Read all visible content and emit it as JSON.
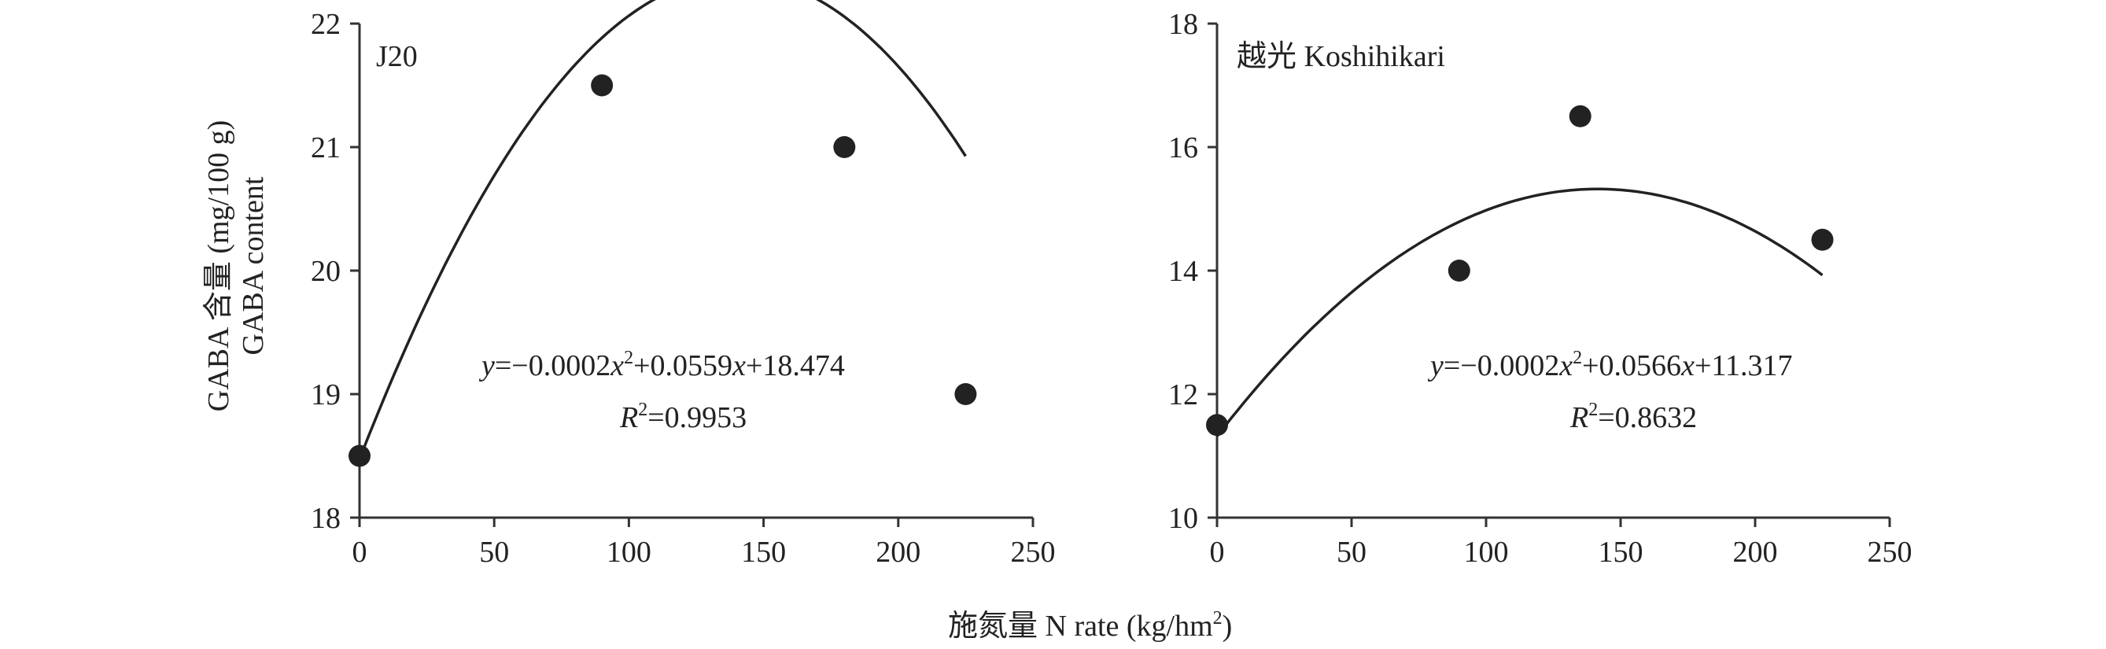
{
  "y_axis_label": {
    "line1": "GABA 含量 (mg/100 g)",
    "line2": "GABA content"
  },
  "x_axis_label": {
    "text": "施氮量 N rate (kg/hm",
    "sup": "2",
    "suffix": ")"
  },
  "chart_data": [
    {
      "type": "scatter",
      "panel_label": "J20",
      "x": [
        0,
        90,
        180,
        225
      ],
      "y": [
        18.5,
        21.5,
        21.0,
        19.0
      ],
      "fit": {
        "a": -0.0002,
        "b": 0.0559,
        "c": 18.474
      },
      "equation": {
        "y": "y",
        "eq1": "=−0.0002",
        "x1": "x",
        "sup": "2",
        "eq2": "+0.0559",
        "x2": "x",
        "eq3": "+18.474",
        "r": "R",
        "rsup": "2",
        "rval": "=0.9953"
      },
      "xlim": [
        0,
        250
      ],
      "ylim": [
        18,
        22
      ],
      "xticks": [
        "0",
        "50",
        "100",
        "150",
        "200",
        "250"
      ],
      "yticks": [
        "18",
        "19",
        "20",
        "21",
        "22"
      ],
      "grid": false,
      "colors": {
        "marker": "#222222",
        "line": "#222222",
        "axis": "#333333"
      }
    },
    {
      "type": "scatter",
      "panel_label": "越光 Koshihikari",
      "x": [
        0,
        90,
        135,
        225
      ],
      "y": [
        11.5,
        14.0,
        16.5,
        14.5
      ],
      "fit": {
        "a": -0.0002,
        "b": 0.0566,
        "c": 11.317
      },
      "equation": {
        "y": "y",
        "eq1": "=−0.0002",
        "x1": "x",
        "sup": "2",
        "eq2": "+0.0566",
        "x2": "x",
        "eq3": "+11.317",
        "r": "R",
        "rsup": "2",
        "rval": "=0.8632"
      },
      "xlim": [
        0,
        250
      ],
      "ylim": [
        10,
        18
      ],
      "xticks": [
        "0",
        "50",
        "100",
        "150",
        "200",
        "250"
      ],
      "yticks": [
        "10",
        "12",
        "14",
        "16",
        "18"
      ],
      "grid": false,
      "colors": {
        "marker": "#222222",
        "line": "#222222",
        "axis": "#333333"
      }
    }
  ]
}
